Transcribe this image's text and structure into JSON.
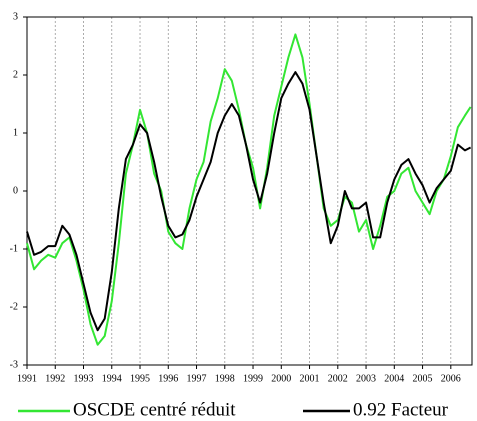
{
  "chart_data": {
    "type": "line",
    "x": [
      1991,
      1991.25,
      1991.5,
      1991.75,
      1992,
      1992.25,
      1992.5,
      1992.75,
      1993,
      1993.25,
      1993.5,
      1993.75,
      1994,
      1994.25,
      1994.5,
      1994.75,
      1995,
      1995.25,
      1995.5,
      1995.75,
      1996,
      1996.25,
      1996.5,
      1996.75,
      1997,
      1997.25,
      1997.5,
      1997.75,
      1998,
      1998.25,
      1998.5,
      1998.75,
      1999,
      1999.25,
      1999.5,
      1999.75,
      2000,
      2000.25,
      2000.5,
      2000.75,
      2001,
      2001.25,
      2001.5,
      2001.75,
      2002,
      2002.25,
      2002.5,
      2002.75,
      2003,
      2003.25,
      2003.5,
      2003.75,
      2004,
      2004.25,
      2004.5,
      2004.75,
      2005,
      2005.25,
      2005.5,
      2005.75,
      2006,
      2006.25,
      2006.5,
      2006.7
    ],
    "series": [
      {
        "name": "OSCDE centré réduit",
        "color": "#33e633",
        "values": [
          -0.9,
          -1.35,
          -1.2,
          -1.1,
          -1.15,
          -0.9,
          -0.8,
          -1.2,
          -1.7,
          -2.3,
          -2.65,
          -2.5,
          -1.9,
          -0.9,
          0.3,
          0.8,
          1.4,
          1.0,
          0.3,
          0.0,
          -0.7,
          -0.9,
          -1.0,
          -0.3,
          0.2,
          0.5,
          1.2,
          1.6,
          2.1,
          1.9,
          1.4,
          0.8,
          0.4,
          -0.3,
          0.4,
          1.3,
          1.8,
          2.3,
          2.7,
          2.3,
          1.5,
          0.6,
          -0.3,
          -0.6,
          -0.5,
          -0.1,
          -0.2,
          -0.7,
          -0.5,
          -1.0,
          -0.6,
          -0.1,
          0.0,
          0.3,
          0.4,
          0.0,
          -0.2,
          -0.4,
          0.0,
          0.2,
          0.6,
          1.1,
          1.3,
          1.45
        ]
      },
      {
        "name": "0.92 Facteur",
        "color": "#000000",
        "values": [
          -0.7,
          -1.1,
          -1.05,
          -0.95,
          -0.95,
          -0.6,
          -0.75,
          -1.1,
          -1.6,
          -2.1,
          -2.4,
          -2.2,
          -1.4,
          -0.3,
          0.55,
          0.8,
          1.15,
          1.0,
          0.5,
          -0.1,
          -0.6,
          -0.8,
          -0.75,
          -0.5,
          -0.1,
          0.2,
          0.5,
          1.0,
          1.3,
          1.5,
          1.3,
          0.8,
          0.2,
          -0.2,
          0.3,
          1.0,
          1.6,
          1.85,
          2.05,
          1.85,
          1.4,
          0.6,
          -0.2,
          -0.9,
          -0.6,
          0.0,
          -0.3,
          -0.3,
          -0.2,
          -0.8,
          -0.8,
          -0.2,
          0.2,
          0.45,
          0.55,
          0.3,
          0.1,
          -0.2,
          0.05,
          0.2,
          0.35,
          0.8,
          0.7,
          0.75
        ]
      }
    ],
    "xlim": [
      1991,
      2006.75
    ],
    "xticks": [
      1991,
      1992,
      1993,
      1994,
      1995,
      1996,
      1997,
      1998,
      1999,
      2000,
      2001,
      2002,
      2003,
      2004,
      2005,
      2006
    ],
    "ylim": [
      -3,
      3
    ],
    "yticks": [
      -3,
      -2,
      -1,
      0,
      1,
      2,
      3
    ],
    "grid": "x"
  }
}
